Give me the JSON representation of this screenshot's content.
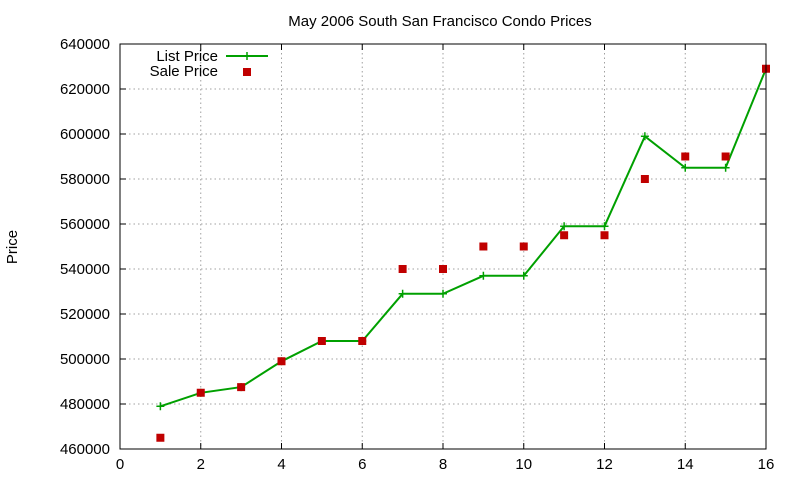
{
  "chart_data": {
    "type": "line",
    "title": "May 2006 South San Francisco Condo Prices",
    "xlabel": "",
    "ylabel": "Price",
    "xlim": [
      0,
      16
    ],
    "ylim": [
      460000,
      640000
    ],
    "xticks": [
      "0",
      "2",
      "4",
      "6",
      "8",
      "10",
      "12",
      "14",
      "16"
    ],
    "yticks": [
      "460000",
      "480000",
      "500000",
      "520000",
      "540000",
      "560000",
      "580000",
      "600000",
      "620000",
      "640000"
    ],
    "grid": true,
    "legend_position": "top-left",
    "series": [
      {
        "name": "List Price",
        "style": "line+cross",
        "color": "#00a000",
        "x": [
          1,
          2,
          3,
          4,
          5,
          6,
          7,
          8,
          9,
          10,
          11,
          12,
          13,
          14,
          15,
          16
        ],
        "y": [
          479000,
          485000,
          487500,
          499000,
          508000,
          508000,
          529000,
          529000,
          537000,
          537000,
          559000,
          559000,
          599000,
          585000,
          585000,
          629000
        ]
      },
      {
        "name": "Sale Price",
        "style": "square",
        "color": "#c00000",
        "x": [
          1,
          2,
          3,
          4,
          5,
          6,
          7,
          8,
          9,
          10,
          11,
          12,
          13,
          14,
          15,
          16
        ],
        "y": [
          465000,
          485000,
          487500,
          499000,
          508000,
          508000,
          540000,
          540000,
          550000,
          550000,
          555000,
          555000,
          580000,
          590000,
          590000,
          629000
        ]
      }
    ]
  }
}
